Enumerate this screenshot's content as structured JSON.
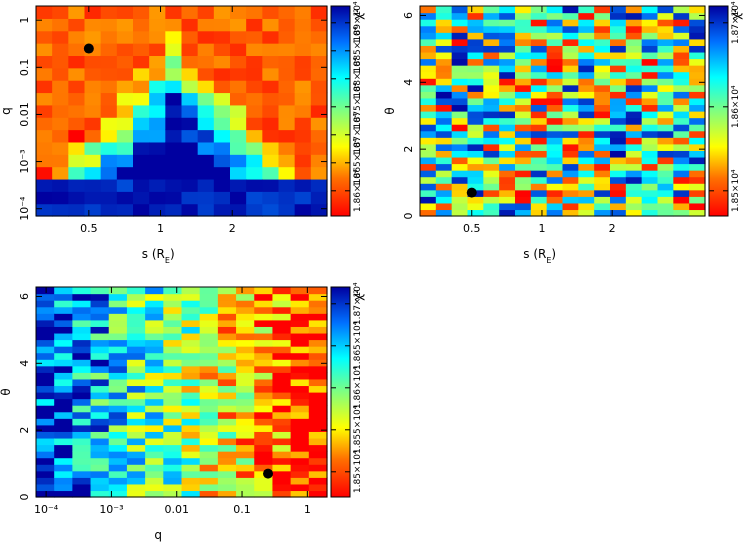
{
  "figure": {
    "description_none": "",
    "colormap_stops": [
      "#ff0000",
      "#ff8000",
      "#ffff00",
      "#80ff80",
      "#00ffff",
      "#0080ff",
      "#0000a0"
    ]
  },
  "chart_data": [
    {
      "type": "heatmap",
      "title": "",
      "xlabel": "s (R_E)",
      "xlabel_main": "s (R",
      "xlabel_sub": "E",
      "xlabel_close": ")",
      "ylabel": "q",
      "xscale": "log",
      "yscale": "log",
      "xlim": [
        0.3,
        5.0
      ],
      "ylim": [
        7e-05,
        2.0
      ],
      "nx": 18,
      "ny": 17,
      "xticks": [
        0.5,
        1,
        2
      ],
      "xtick_labels": [
        "0.5",
        "1",
        "2"
      ],
      "yticks": [
        0.0001,
        0.001,
        0.01,
        0.1,
        1
      ],
      "ytick_labels": [
        "10⁻⁴",
        "10⁻³",
        "0.01",
        "0.1",
        "1"
      ],
      "marker": {
        "x": 0.5,
        "y": 0.25
      },
      "colorbar": {
        "label": "χ²",
        "ticks": [
          "1.86×10⁴",
          "1.865×10⁴",
          "1.87×10⁴",
          "1.875×10⁴",
          "1.88×10⁴",
          "1.885×10⁴",
          "1.89×10⁴"
        ]
      },
      "pattern": "V-shaped low-chi2 region: low χ² (red) at high q, high χ² (blue) at low q, widening away from s≈1"
    },
    {
      "type": "heatmap",
      "title": "",
      "xlabel": "s (R_E)",
      "xlabel_main": "s (R",
      "xlabel_sub": "E",
      "xlabel_close": ")",
      "ylabel": "θ",
      "xscale": "log",
      "yscale": "linear",
      "xlim": [
        0.3,
        5.0
      ],
      "ylim": [
        0,
        6.283
      ],
      "nx": 18,
      "ny": 32,
      "xticks": [
        0.5,
        1,
        2
      ],
      "xtick_labels": [
        "0.5",
        "1",
        "2"
      ],
      "yticks": [
        0,
        2,
        4,
        6
      ],
      "ytick_labels": [
        "0",
        "2",
        "4",
        "6"
      ],
      "marker": {
        "x": 0.5,
        "y": 0.7
      },
      "colorbar": {
        "label": "χ²",
        "ticks": [
          "1.85×10⁴",
          "1.86×10⁴",
          "1.87×10⁴"
        ]
      },
      "pattern": "noisy mix across all values"
    },
    {
      "type": "heatmap",
      "title": "",
      "xlabel": "q",
      "ylabel": "θ",
      "xscale": "log",
      "yscale": "linear",
      "xlim": [
        7e-05,
        2.0
      ],
      "ylim": [
        0,
        6.283
      ],
      "nx": 16,
      "ny": 32,
      "xticks": [
        0.0001,
        0.001,
        0.01,
        0.1,
        1
      ],
      "xtick_labels": [
        "10⁻⁴",
        "10⁻³",
        "0.01",
        "0.1",
        "1"
      ],
      "yticks": [
        0,
        2,
        4,
        6
      ],
      "ytick_labels": [
        "0",
        "2",
        "4",
        "6"
      ],
      "marker": {
        "x": 0.25,
        "y": 0.7
      },
      "colorbar": {
        "label": "χ²",
        "ticks": [
          "1.85×10⁴",
          "1.855×10⁴",
          "1.86×10⁴",
          "1.865×10⁴",
          "1.87×10⁴"
        ]
      },
      "pattern": "χ² decreases (blue to red) with increasing q"
    }
  ]
}
